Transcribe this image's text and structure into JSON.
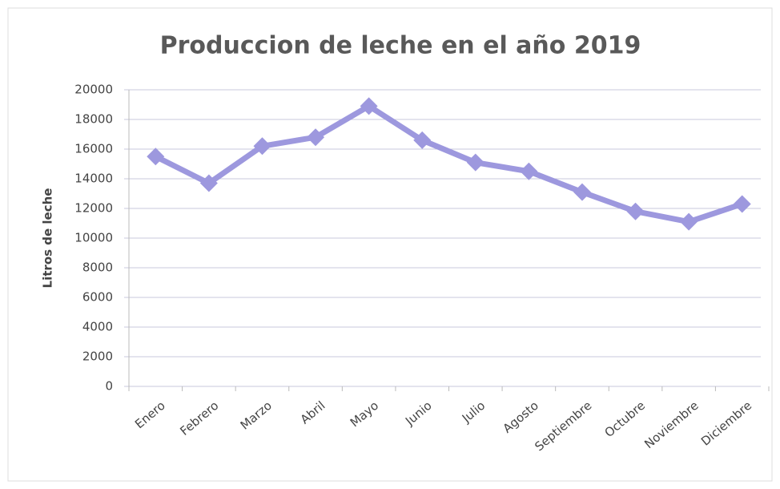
{
  "chart_data": {
    "type": "line",
    "title": "Produccion de leche en el año 2019",
    "y_label": "Litros de leche",
    "categories": [
      "Enero",
      "Febrero",
      "Marzo",
      "Abril",
      "Mayo",
      "Junio",
      "Julio",
      "Agosto",
      "Septiembre",
      "Octubre",
      "Noviembre",
      "Diciembre"
    ],
    "values": [
      15500,
      13700,
      16200,
      16800,
      18900,
      16600,
      15100,
      14500,
      13100,
      11800,
      11100,
      12300
    ],
    "color": "#9d98de",
    "marker": "diamond",
    "ylim": [
      0,
      20000
    ],
    "yticks": [
      0,
      2000,
      4000,
      6000,
      8000,
      10000,
      12000,
      14000,
      16000,
      18000,
      20000
    ],
    "grid": true
  }
}
